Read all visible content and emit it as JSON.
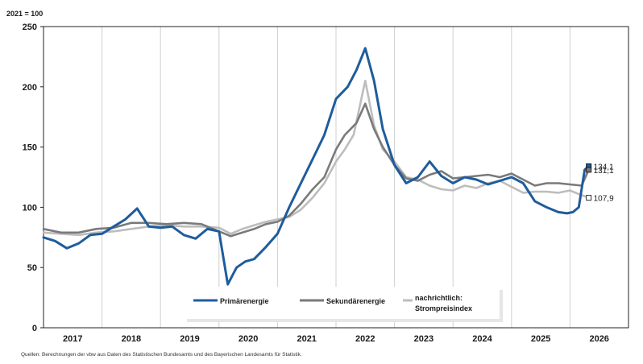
{
  "unit_label": "2021 = 100",
  "source": "Quellen: Berechnungen der vbw aus Daten des Statistischen Bundesamts und des Bayerischen Landesamts für Statistik.",
  "legend": {
    "primaer": "Primärenergie",
    "sekundaer": "Sekundärenergie",
    "strom_line1": "nachrichtlich:",
    "strom_line2": "Strompreisindex"
  },
  "colors": {
    "primaer": "#1f5c9c",
    "sekundaer": "#7a7a7a",
    "strom": "#bdbdbd",
    "grid": "#cfcfcf"
  },
  "chart_data": {
    "type": "line",
    "title": "",
    "xlabel": "",
    "ylabel": "2021 = 100",
    "ylim": [
      0,
      250
    ],
    "yticks": [
      0,
      50,
      100,
      150,
      200,
      250
    ],
    "year_labels": [
      "2017",
      "2018",
      "2019",
      "2020",
      "2021",
      "2022",
      "2023",
      "2024",
      "2025",
      "2026"
    ],
    "xlim": [
      2017.0,
      2027.0
    ],
    "grid": "vertical year separators",
    "legend_position": "bottom-center",
    "series": [
      {
        "name": "Primärenergie",
        "x": [
          2017.0,
          2017.2,
          2017.4,
          2017.6,
          2017.8,
          2018.0,
          2018.2,
          2018.4,
          2018.6,
          2018.8,
          2019.0,
          2019.2,
          2019.4,
          2019.6,
          2019.8,
          2020.0,
          2020.15,
          2020.3,
          2020.45,
          2020.6,
          2020.8,
          2021.0,
          2021.2,
          2021.4,
          2021.6,
          2021.8,
          2022.0,
          2022.2,
          2022.35,
          2022.5,
          2022.65,
          2022.8,
          2023.0,
          2023.2,
          2023.4,
          2023.6,
          2023.8,
          2024.0,
          2024.2,
          2024.4,
          2024.6,
          2024.8,
          2025.0,
          2025.2,
          2025.4,
          2025.6,
          2025.8,
          2025.95,
          2026.05,
          2026.15,
          2026.25,
          2026.32
        ],
        "values": [
          75,
          72,
          66,
          70,
          77,
          78,
          84,
          90,
          99,
          84,
          83,
          84,
          77,
          74,
          82,
          80,
          36,
          50,
          55,
          57,
          67,
          78,
          100,
          120,
          140,
          160,
          190,
          200,
          214,
          232,
          205,
          165,
          135,
          120,
          125,
          138,
          126,
          120,
          125,
          123,
          119,
          122,
          125,
          120,
          105,
          100,
          96,
          95,
          96,
          100,
          131.1,
          134.1
        ]
      },
      {
        "name": "Sekundärenergie",
        "x": [
          2017.0,
          2017.3,
          2017.6,
          2017.9,
          2018.2,
          2018.5,
          2018.8,
          2019.1,
          2019.4,
          2019.7,
          2020.0,
          2020.2,
          2020.4,
          2020.6,
          2020.8,
          2021.0,
          2021.2,
          2021.4,
          2021.6,
          2021.8,
          2022.0,
          2022.15,
          2022.35,
          2022.5,
          2022.65,
          2022.8,
          2023.0,
          2023.2,
          2023.4,
          2023.6,
          2023.8,
          2024.0,
          2024.2,
          2024.4,
          2024.6,
          2024.8,
          2025.0,
          2025.2,
          2025.4,
          2025.6,
          2025.8,
          2026.0,
          2026.2,
          2026.32
        ],
        "values": [
          82,
          79,
          79,
          82,
          83,
          87,
          87,
          86,
          87,
          86,
          80,
          76,
          79,
          82,
          86,
          88,
          93,
          103,
          115,
          125,
          148,
          160,
          170,
          186,
          165,
          150,
          135,
          124,
          122,
          127,
          130,
          124,
          125,
          126,
          127,
          125,
          128,
          123,
          118,
          120,
          120,
          119,
          118,
          131.1
        ]
      },
      {
        "name": "nachrichtlich: Strompreisindex",
        "x": [
          2017.0,
          2017.3,
          2017.6,
          2017.9,
          2018.2,
          2018.5,
          2018.8,
          2019.1,
          2019.4,
          2019.7,
          2020.0,
          2020.2,
          2020.4,
          2020.6,
          2020.8,
          2021.0,
          2021.2,
          2021.4,
          2021.6,
          2021.8,
          2022.0,
          2022.15,
          2022.3,
          2022.5,
          2022.65,
          2022.8,
          2023.0,
          2023.2,
          2023.4,
          2023.6,
          2023.8,
          2024.0,
          2024.2,
          2024.4,
          2024.6,
          2024.8,
          2025.0,
          2025.2,
          2025.4,
          2025.6,
          2025.8,
          2026.0,
          2026.2,
          2026.32
        ],
        "values": [
          79,
          78,
          77,
          79,
          80,
          82,
          84,
          85,
          84,
          84,
          83,
          78,
          82,
          85,
          88,
          90,
          92,
          98,
          108,
          120,
          138,
          148,
          160,
          205,
          168,
          148,
          138,
          125,
          123,
          118,
          115,
          114,
          118,
          116,
          120,
          122,
          117,
          112,
          113,
          113,
          112,
          114,
          110,
          107.9
        ]
      }
    ],
    "end_labels": [
      "134,1",
      "131,1",
      "107,9"
    ]
  }
}
